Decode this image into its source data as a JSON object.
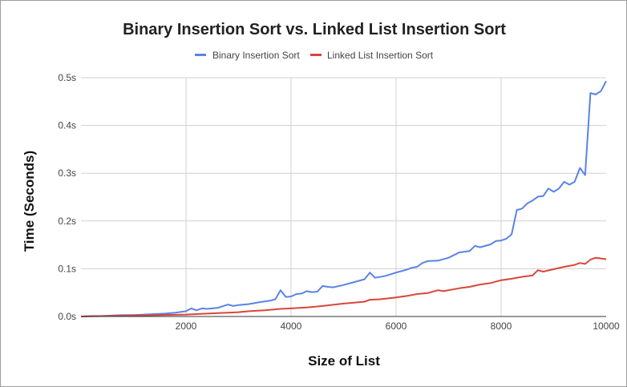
{
  "chart_data": {
    "type": "line",
    "title": "Binary Insertion Sort vs. Linked List Insertion Sort",
    "xlabel": "Size of List",
    "ylabel": "Time (Seconds)",
    "xlim": [
      0,
      10000
    ],
    "ylim": [
      0,
      0.5
    ],
    "x_ticks": [
      2000,
      4000,
      6000,
      8000,
      10000
    ],
    "x_tick_labels": [
      "2000",
      "4000",
      "6000",
      "8000",
      "10000"
    ],
    "y_ticks": [
      0,
      0.1,
      0.2,
      0.3,
      0.4,
      0.5
    ],
    "y_tick_labels": [
      "0.0s",
      "0.1s",
      "0.2s",
      "0.3s",
      "0.4s",
      "0.5s"
    ],
    "grid": true,
    "legend_position": "top",
    "series": [
      {
        "name": "Binary Insertion Sort",
        "color": "#5a83e6",
        "points": [
          [
            0,
            0
          ],
          [
            200,
            0.001
          ],
          [
            400,
            0.001
          ],
          [
            600,
            0.002
          ],
          [
            800,
            0.003
          ],
          [
            1000,
            0.003
          ],
          [
            1200,
            0.004
          ],
          [
            1400,
            0.005
          ],
          [
            1600,
            0.006
          ],
          [
            1800,
            0.008
          ],
          [
            2000,
            0.011
          ],
          [
            2100,
            0.017
          ],
          [
            2200,
            0.013
          ],
          [
            2300,
            0.017
          ],
          [
            2400,
            0.016
          ],
          [
            2600,
            0.018
          ],
          [
            2800,
            0.025
          ],
          [
            2900,
            0.022
          ],
          [
            3000,
            0.024
          ],
          [
            3200,
            0.026
          ],
          [
            3400,
            0.03
          ],
          [
            3600,
            0.033
          ],
          [
            3700,
            0.036
          ],
          [
            3800,
            0.055
          ],
          [
            3900,
            0.041
          ],
          [
            4000,
            0.042
          ],
          [
            4100,
            0.047
          ],
          [
            4200,
            0.048
          ],
          [
            4300,
            0.053
          ],
          [
            4400,
            0.051
          ],
          [
            4500,
            0.052
          ],
          [
            4600,
            0.064
          ],
          [
            4700,
            0.062
          ],
          [
            4800,
            0.061
          ],
          [
            5000,
            0.066
          ],
          [
            5200,
            0.072
          ],
          [
            5400,
            0.078
          ],
          [
            5500,
            0.092
          ],
          [
            5600,
            0.081
          ],
          [
            5800,
            0.085
          ],
          [
            6000,
            0.092
          ],
          [
            6200,
            0.098
          ],
          [
            6300,
            0.102
          ],
          [
            6400,
            0.104
          ],
          [
            6500,
            0.112
          ],
          [
            6600,
            0.116
          ],
          [
            6800,
            0.117
          ],
          [
            7000,
            0.123
          ],
          [
            7200,
            0.134
          ],
          [
            7400,
            0.137
          ],
          [
            7500,
            0.148
          ],
          [
            7600,
            0.145
          ],
          [
            7800,
            0.151
          ],
          [
            7900,
            0.158
          ],
          [
            8000,
            0.159
          ],
          [
            8100,
            0.163
          ],
          [
            8200,
            0.172
          ],
          [
            8300,
            0.223
          ],
          [
            8400,
            0.226
          ],
          [
            8500,
            0.237
          ],
          [
            8600,
            0.243
          ],
          [
            8700,
            0.251
          ],
          [
            8800,
            0.252
          ],
          [
            8900,
            0.268
          ],
          [
            9000,
            0.261
          ],
          [
            9100,
            0.268
          ],
          [
            9200,
            0.282
          ],
          [
            9300,
            0.276
          ],
          [
            9400,
            0.282
          ],
          [
            9500,
            0.311
          ],
          [
            9600,
            0.296
          ],
          [
            9700,
            0.468
          ],
          [
            9800,
            0.465
          ],
          [
            9900,
            0.472
          ],
          [
            10000,
            0.493
          ]
        ]
      },
      {
        "name": "Linked List Insertion Sort",
        "color": "#d9463a",
        "points": [
          [
            0,
            0
          ],
          [
            500,
            0.001
          ],
          [
            1000,
            0.002
          ],
          [
            1500,
            0.003
          ],
          [
            2000,
            0.004
          ],
          [
            2400,
            0.006
          ],
          [
            2600,
            0.007
          ],
          [
            2800,
            0.008
          ],
          [
            3000,
            0.009
          ],
          [
            3200,
            0.011
          ],
          [
            3500,
            0.013
          ],
          [
            3800,
            0.016
          ],
          [
            4000,
            0.017
          ],
          [
            4300,
            0.019
          ],
          [
            4600,
            0.022
          ],
          [
            5000,
            0.027
          ],
          [
            5200,
            0.029
          ],
          [
            5400,
            0.031
          ],
          [
            5500,
            0.035
          ],
          [
            5700,
            0.036
          ],
          [
            6000,
            0.04
          ],
          [
            6200,
            0.043
          ],
          [
            6400,
            0.047
          ],
          [
            6600,
            0.049
          ],
          [
            6800,
            0.055
          ],
          [
            6900,
            0.053
          ],
          [
            7200,
            0.059
          ],
          [
            7400,
            0.062
          ],
          [
            7600,
            0.067
          ],
          [
            7800,
            0.07
          ],
          [
            8000,
            0.076
          ],
          [
            8200,
            0.079
          ],
          [
            8400,
            0.083
          ],
          [
            8600,
            0.086
          ],
          [
            8700,
            0.097
          ],
          [
            8800,
            0.094
          ],
          [
            9000,
            0.099
          ],
          [
            9200,
            0.104
          ],
          [
            9400,
            0.108
          ],
          [
            9500,
            0.112
          ],
          [
            9600,
            0.11
          ],
          [
            9700,
            0.119
          ],
          [
            9800,
            0.123
          ],
          [
            10000,
            0.12
          ]
        ]
      }
    ]
  }
}
